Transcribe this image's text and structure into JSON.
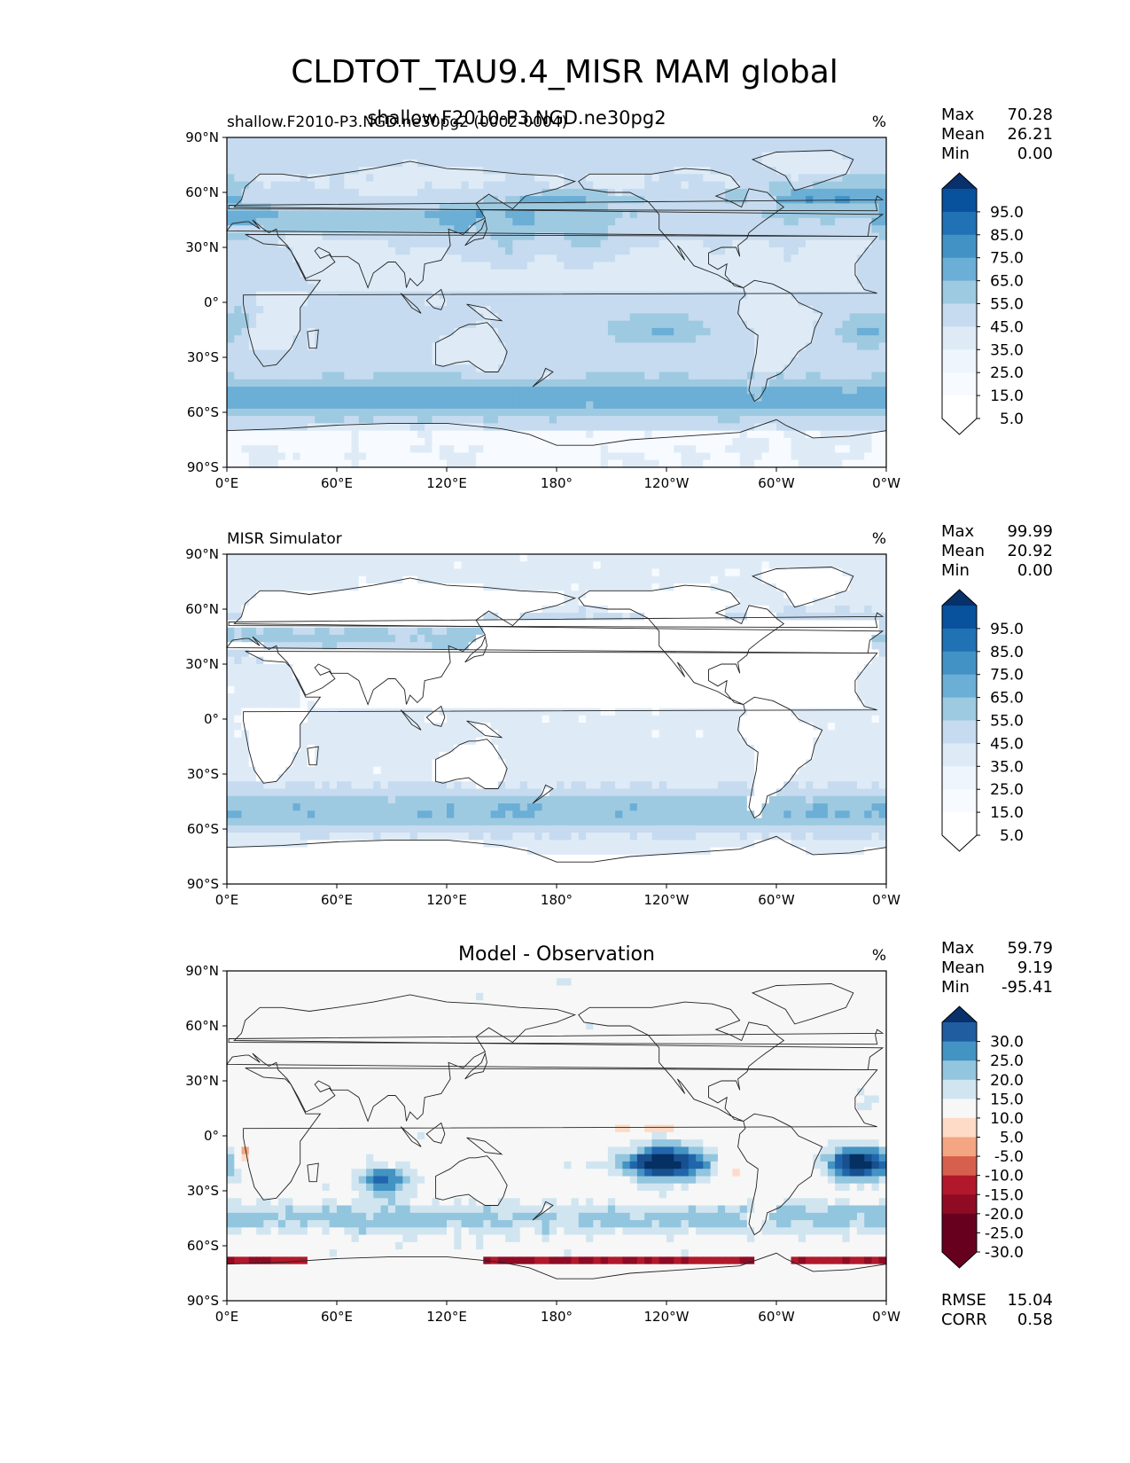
{
  "figure": {
    "suptitle": "CLDTOT_TAU9.4_MISR MAM global",
    "x_ticks": [
      "0°E",
      "60°E",
      "120°E",
      "180°",
      "120°W",
      "60°W",
      "0°W"
    ],
    "y_ticks": [
      "90°N",
      "60°N",
      "30°N",
      "0°",
      "30°S",
      "60°S",
      "90°S"
    ]
  },
  "colors": {
    "blues": [
      "#f7fbff",
      "#deebf7",
      "#c6dbef",
      "#9ecae1",
      "#6baed6",
      "#4292c6",
      "#2171b5",
      "#08519c",
      "#08306b"
    ],
    "diverging": [
      "#67001f",
      "#b2182b",
      "#d6604d",
      "#f4a582",
      "#fddbc7",
      "#f7f7f7",
      "#d1e5f0",
      "#92c5de",
      "#4393c3",
      "#2166ac",
      "#053061"
    ],
    "land_outline": "#222222"
  },
  "chart_data": [
    {
      "type": "heatmap",
      "panel": "test",
      "title_left": "shallow.F2010-P3.NGD.ne30pg2 (0002-0004)",
      "title_center": "shallow.F2010-P3.NGD.ne30pg2",
      "title_right": "%",
      "stats": [
        {
          "label": "Max",
          "value": "70.28"
        },
        {
          "label": "Mean",
          "value": "26.21"
        },
        {
          "label": "Min",
          "value": "0.00"
        }
      ],
      "colorbar": {
        "labels": [
          "95.0",
          "85.0",
          "75.0",
          "65.0",
          "55.0",
          "45.0",
          "35.0",
          "25.0",
          "15.0",
          "5.0"
        ],
        "range": [
          0,
          100
        ],
        "extend": "both"
      },
      "xlim": [
        0,
        360
      ],
      "ylim": [
        -90,
        90
      ]
    },
    {
      "type": "heatmap",
      "panel": "reference",
      "title_left": "MISR Simulator",
      "title_center": "",
      "title_right": "%",
      "stats": [
        {
          "label": "Max",
          "value": "99.99"
        },
        {
          "label": "Mean",
          "value": "20.92"
        },
        {
          "label": "Min",
          "value": "0.00"
        }
      ],
      "colorbar": {
        "labels": [
          "95.0",
          "85.0",
          "75.0",
          "65.0",
          "55.0",
          "45.0",
          "35.0",
          "25.0",
          "15.0",
          "5.0"
        ],
        "range": [
          0,
          100
        ],
        "extend": "both"
      },
      "xlim": [
        0,
        360
      ],
      "ylim": [
        -90,
        90
      ]
    },
    {
      "type": "heatmap",
      "panel": "difference",
      "title_left": "",
      "title_center": "Model - Observation",
      "title_right": "%",
      "stats": [
        {
          "label": "Max",
          "value": "59.79"
        },
        {
          "label": "Mean",
          "value": "9.19"
        },
        {
          "label": "Min",
          "value": "-95.41"
        }
      ],
      "colorbar": {
        "labels": [
          "30.0",
          "25.0",
          "20.0",
          "15.0",
          "10.0",
          "5.0",
          "-5.0",
          "-10.0",
          "-15.0",
          "-20.0",
          "-25.0",
          "-30.0"
        ],
        "range": [
          -35,
          35
        ],
        "extend": "both"
      },
      "metrics": [
        {
          "label": "RMSE",
          "value": "15.04"
        },
        {
          "label": "CORR",
          "value": "0.58"
        }
      ],
      "xlim": [
        0,
        360
      ],
      "ylim": [
        -90,
        90
      ]
    }
  ]
}
